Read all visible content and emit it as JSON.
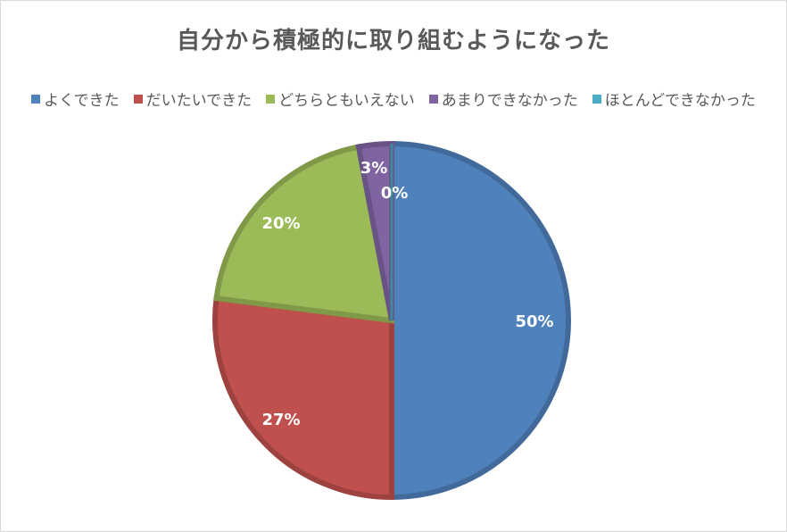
{
  "chart_data": {
    "type": "pie",
    "title": "自分から積極的に取り組むようになった",
    "legend_position": "top",
    "categories": [
      "よくできた",
      "だいたいできた",
      "どちらともいえない",
      "あまりできなかった",
      "ほとんどできなかった"
    ],
    "values": [
      50,
      27,
      20,
      3,
      0
    ],
    "labels": [
      "50%",
      "27%",
      "20%",
      "3%",
      "0%"
    ],
    "colors": [
      "#4f81bd",
      "#c0504d",
      "#9bbb59",
      "#8064a2",
      "#4bacc6"
    ],
    "start_angle_deg": 0,
    "direction": "clockwise"
  }
}
